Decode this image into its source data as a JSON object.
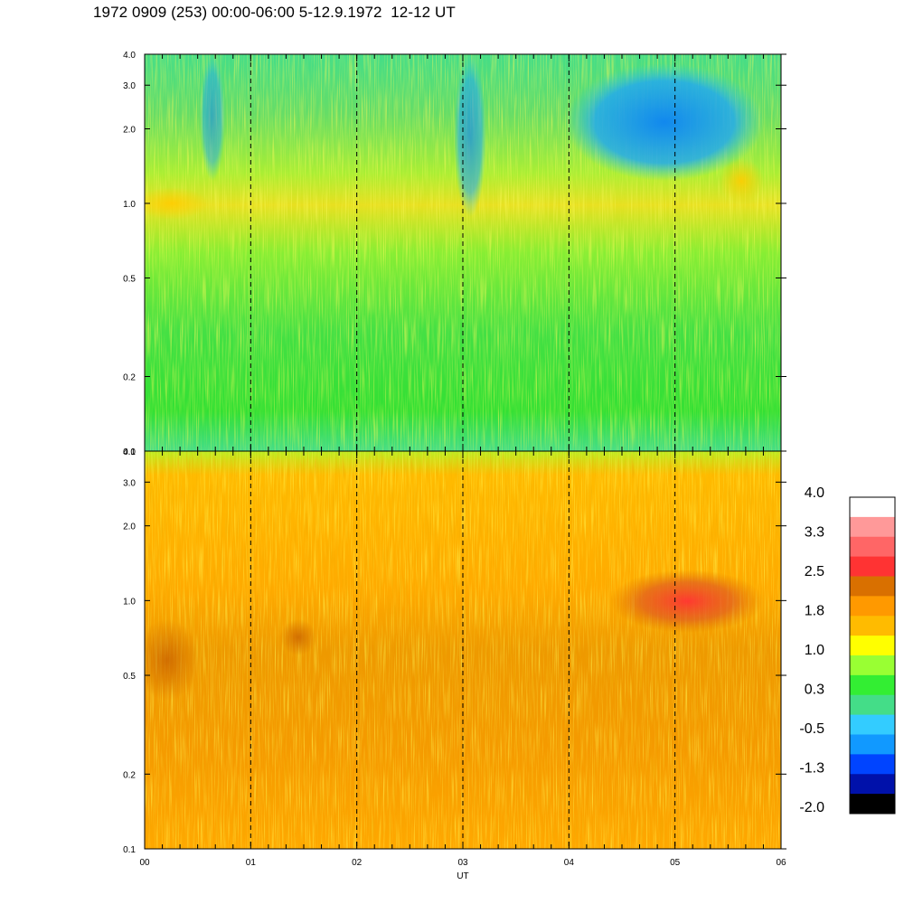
{
  "title": "1972 0909 (253) 00:00-06:00 5-12.9.1972  12-12 UT",
  "chart_data": {
    "type": "heatmap",
    "title": "1972 0909 (253) 00:00-06:00 5-12.9.1972  12-12 UT",
    "xlabel": "UT",
    "x_ticks": [
      "00",
      "01",
      "02",
      "03",
      "04",
      "05",
      "06"
    ],
    "x_range": [
      0,
      6
    ],
    "panels": [
      {
        "name": "upper",
        "y_scale": "log",
        "y_range": [
          0.1,
          4.0
        ],
        "y_ticks": [
          {
            "value": 0.1,
            "label": "0.1"
          },
          {
            "value": 0.2,
            "label": "0.2"
          },
          {
            "value": 0.5,
            "label": "0.5"
          },
          {
            "value": 1.0,
            "label": "1.0"
          },
          {
            "value": 2.0,
            "label": "2.0"
          },
          {
            "value": 3.0,
            "label": "3.0"
          },
          {
            "value": 4.0,
            "label": "4.0"
          }
        ],
        "dominant_levels": "green-cyan with yellow band near 0.7-1.0; blue region 1.3-3.5 after 04 UT"
      },
      {
        "name": "lower",
        "y_scale": "log",
        "y_range": [
          0.1,
          4.0
        ],
        "y_ticks": [
          {
            "value": 0.1,
            "label": "0.1"
          },
          {
            "value": 0.2,
            "label": "0.2"
          },
          {
            "value": 0.5,
            "label": "0.5"
          },
          {
            "value": 1.0,
            "label": "1.0"
          },
          {
            "value": 2.0,
            "label": "2.0"
          },
          {
            "value": 3.0,
            "label": "3.0"
          },
          {
            "value": 4.0,
            "label": "4.0"
          }
        ],
        "dominant_levels": "orange-yellow with red patch near 1.0 around 04:30-05:40 UT"
      }
    ],
    "dashed_lines_at": [
      1,
      2,
      3,
      4,
      5
    ],
    "colorbar": {
      "labels": [
        "4.0",
        "3.3",
        "2.5",
        "1.8",
        "1.0",
        "0.3",
        "-0.5",
        "-1.3",
        "-2.0"
      ],
      "colors_top_to_bottom": [
        "#ffffff",
        "#ff9999",
        "#ff6666",
        "#ff3333",
        "#d97000",
        "#ff9900",
        "#ffbb00",
        "#ffff00",
        "#99ff33",
        "#33ee33",
        "#44dd88",
        "#33ccff",
        "#1199ff",
        "#0044ff",
        "#0011aa",
        "#000000"
      ]
    }
  }
}
